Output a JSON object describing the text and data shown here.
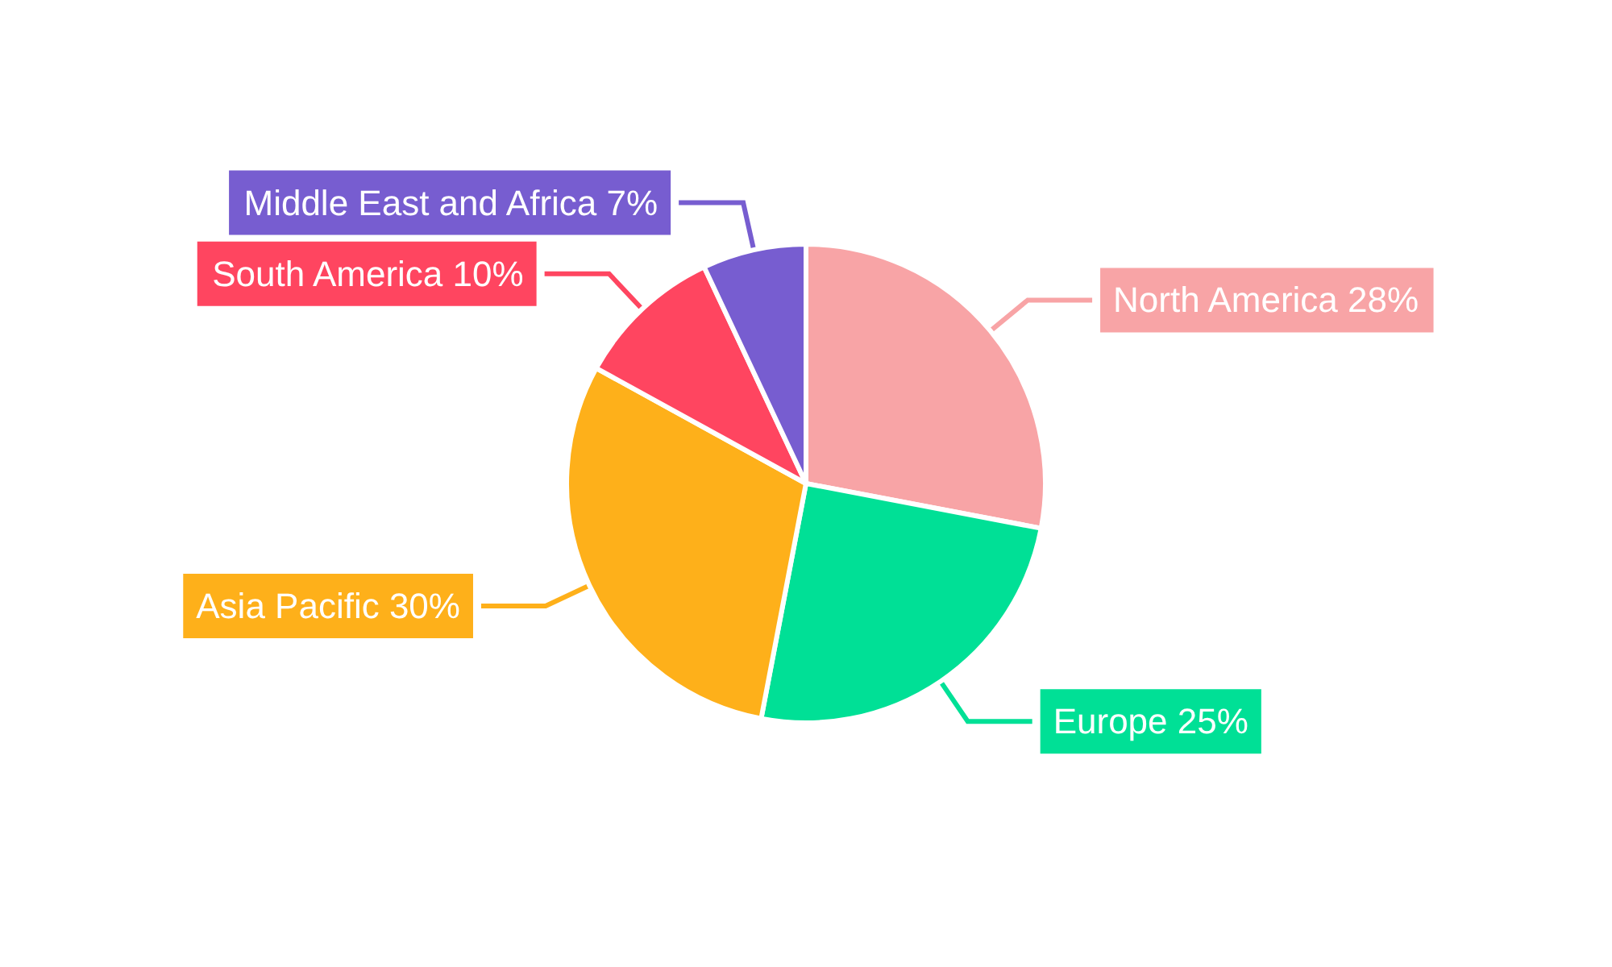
{
  "chart_data": {
    "type": "pie",
    "categories": [
      "North America",
      "Europe",
      "Asia Pacific",
      "South America",
      "Middle East and Africa"
    ],
    "values": [
      28,
      25,
      30,
      10,
      7
    ],
    "value_labels": [
      "28%",
      "25%",
      "30%",
      "10%",
      "7%"
    ],
    "colors": [
      "#f8a4a6",
      "#00e096",
      "#feb01a",
      "#ff4560",
      "#775dd0"
    ],
    "legend": false
  }
}
